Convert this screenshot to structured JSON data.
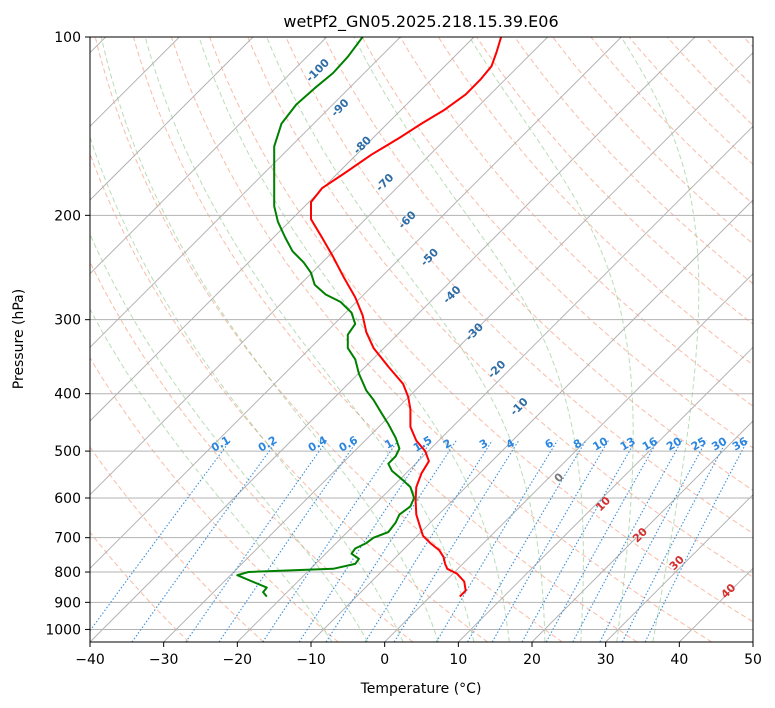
{
  "chart_data": {
    "type": "line",
    "subtype": "skew-t log-p diagram",
    "title": "wetPf2_GN05.2025.218.15.39.E06",
    "xlabel": "Temperature (°C)",
    "ylabel": "Pressure (hPa)",
    "xlim": [
      -40,
      50
    ],
    "ylim": [
      1050,
      100
    ],
    "y_scale": "log",
    "x_ticks": [
      -40,
      -30,
      -20,
      -10,
      0,
      10,
      20,
      30,
      40,
      50
    ],
    "y_ticks": [
      100,
      200,
      300,
      400,
      500,
      600,
      700,
      800,
      900,
      1000
    ],
    "grid": true,
    "series": [
      {
        "color": "#ff0000",
        "points": [
          [
            10.2,
            880
          ],
          [
            11.0,
            860
          ],
          [
            10.8,
            830
          ],
          [
            9.8,
            805
          ],
          [
            8.5,
            790
          ],
          [
            8.2,
            775
          ],
          [
            8.0,
            755
          ],
          [
            7.4,
            735
          ],
          [
            6.2,
            715
          ],
          [
            5.2,
            695
          ],
          [
            4.8,
            670
          ],
          [
            4.3,
            640
          ],
          [
            4.2,
            605
          ],
          [
            4.3,
            575
          ],
          [
            5.0,
            545
          ],
          [
            6.0,
            520
          ],
          [
            5.5,
            500
          ],
          [
            4.3,
            480
          ],
          [
            3.5,
            455
          ],
          [
            3.5,
            425
          ],
          [
            3.2,
            405
          ],
          [
            2.5,
            385
          ],
          [
            0.5,
            360
          ],
          [
            -1.5,
            335
          ],
          [
            -2.5,
            315
          ],
          [
            -3.0,
            295
          ],
          [
            -4.0,
            275
          ],
          [
            -5.5,
            255
          ],
          [
            -7.0,
            235
          ],
          [
            -8.5,
            218
          ],
          [
            -10.0,
            203
          ],
          [
            -10.0,
            190
          ],
          [
            -8.5,
            180
          ],
          [
            -5.5,
            170
          ],
          [
            -1.8,
            158
          ],
          [
            2.0,
            148
          ],
          [
            5.0,
            140
          ],
          [
            8.0,
            133
          ],
          [
            11.0,
            125
          ],
          [
            13.0,
            118
          ],
          [
            14.5,
            112
          ],
          [
            15.2,
            106
          ],
          [
            15.8,
            100
          ]
        ]
      },
      {
        "color": "#008000",
        "points": [
          [
            -16.0,
            880
          ],
          [
            -16.5,
            865
          ],
          [
            -16.0,
            850
          ],
          [
            -17.5,
            835
          ],
          [
            -20.0,
            810
          ],
          [
            -18.5,
            800
          ],
          [
            -7.0,
            790
          ],
          [
            -4.0,
            775
          ],
          [
            -3.5,
            760
          ],
          [
            -4.5,
            745
          ],
          [
            -4.0,
            730
          ],
          [
            -2.5,
            715
          ],
          [
            -1.5,
            700
          ],
          [
            0.5,
            685
          ],
          [
            1.5,
            660
          ],
          [
            2.0,
            640
          ],
          [
            3.5,
            620
          ],
          [
            4.0,
            600
          ],
          [
            3.5,
            575
          ],
          [
            2.5,
            560
          ],
          [
            1.0,
            540
          ],
          [
            0.5,
            525
          ],
          [
            1.5,
            510
          ],
          [
            2.0,
            495
          ],
          [
            1.5,
            475
          ],
          [
            0.5,
            450
          ],
          [
            -0.5,
            430
          ],
          [
            -1.5,
            410
          ],
          [
            -2.5,
            395
          ],
          [
            -3.5,
            370
          ],
          [
            -4.0,
            350
          ],
          [
            -5.0,
            335
          ],
          [
            -5.0,
            318
          ],
          [
            -4.0,
            305
          ],
          [
            -4.5,
            292
          ],
          [
            -6.0,
            280
          ],
          [
            -8.0,
            272
          ],
          [
            -9.5,
            262
          ],
          [
            -10.0,
            250
          ],
          [
            -11.0,
            240
          ],
          [
            -12.5,
            230
          ],
          [
            -13.5,
            218
          ],
          [
            -14.5,
            205
          ],
          [
            -15.0,
            193
          ],
          [
            -15.0,
            180
          ],
          [
            -15.0,
            166
          ],
          [
            -15.0,
            153
          ],
          [
            -14.0,
            140
          ],
          [
            -12.0,
            130
          ],
          [
            -9.5,
            122
          ],
          [
            -7.0,
            115
          ],
          [
            -5.0,
            108
          ],
          [
            -3.0,
            100
          ]
        ]
      }
    ],
    "dry_adiabat_labels": [
      "-100",
      "-90",
      "-80",
      "-70",
      "-60",
      "-50",
      "-40",
      "-30",
      "-20",
      "-10"
    ],
    "moist_adiabat_labels": [
      "0",
      "10",
      "20",
      "30",
      "40"
    ],
    "mixing_ratio_labels": [
      "0.1",
      "0.2",
      "0.4",
      "0.6",
      "1",
      "1.5",
      "2",
      "3",
      "4",
      "6",
      "8",
      "10",
      "13",
      "16",
      "20",
      "25",
      "30",
      "36"
    ]
  }
}
